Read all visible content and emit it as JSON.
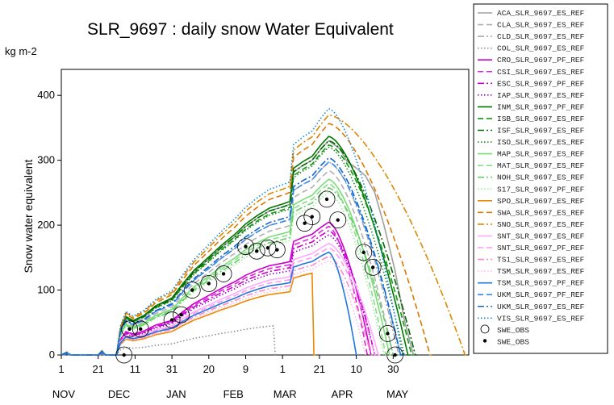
{
  "chart_data": {
    "type": "line",
    "title": "SLR_9697 : daily  snow Water Equivalent",
    "unit": "kg m-2",
    "ylabel": "Snow water equivalent",
    "ylim": [
      0,
      440
    ],
    "yticks": [
      0,
      100,
      200,
      300,
      400
    ],
    "xlim": [
      "1996-11-01",
      "1997-06-10"
    ],
    "xticks": [
      {
        "date": "1996-11-01",
        "label": "1"
      },
      {
        "date": "1996-11-21",
        "label": "21"
      },
      {
        "date": "1996-12-11",
        "label": "11"
      },
      {
        "date": "1996-12-31",
        "label": "31"
      },
      {
        "date": "1997-01-20",
        "label": "20"
      },
      {
        "date": "1997-02-09",
        "label": "9"
      },
      {
        "date": "1997-03-01",
        "label": "1"
      },
      {
        "date": "1997-03-21",
        "label": "21"
      },
      {
        "date": "1997-04-10",
        "label": "10"
      },
      {
        "date": "1997-04-30",
        "label": "30"
      }
    ],
    "months": [
      {
        "date": "1996-11-01",
        "label": "NOV"
      },
      {
        "date": "1996-12-01",
        "label": "DEC"
      },
      {
        "date": "1997-01-01",
        "label": "JAN"
      },
      {
        "date": "1997-02-01",
        "label": "FEB"
      },
      {
        "date": "1997-03-01",
        "label": "MAR"
      },
      {
        "date": "1997-04-01",
        "label": "APR"
      },
      {
        "date": "1997-05-01",
        "label": "MAY"
      }
    ],
    "grid": false,
    "legend_position": "right",
    "series": [
      {
        "name": "ACA_SLR_9697_ES_REF",
        "color": "#a0a0a0",
        "dash": "solid",
        "scale": 0.88,
        "melt": "1997-05-01",
        "points": [
          [
            "1996-11-01",
            0
          ],
          [
            "1996-11-04",
            4
          ],
          [
            "1996-11-06",
            0
          ],
          [
            "1996-11-21",
            0
          ],
          [
            "1996-11-23",
            6
          ],
          [
            "1996-11-25",
            0
          ],
          [
            "1996-12-01",
            0
          ],
          [
            "1996-12-03",
            38
          ],
          [
            "1996-12-06",
            58
          ],
          [
            "1996-12-10",
            52
          ],
          [
            "1996-12-16",
            60
          ],
          [
            "1996-12-22",
            74
          ],
          [
            "1996-12-31",
            86
          ],
          [
            "1997-01-06",
            108
          ],
          [
            "1997-01-12",
            128
          ],
          [
            "1997-01-20",
            148
          ],
          [
            "1997-01-27",
            166
          ],
          [
            "1997-02-03",
            182
          ],
          [
            "1997-02-09",
            198
          ],
          [
            "1997-02-16",
            212
          ],
          [
            "1997-02-22",
            222
          ],
          [
            "1997-03-01",
            228
          ],
          [
            "1997-03-05",
            232
          ],
          [
            "1997-03-07",
            282
          ],
          [
            "1997-03-12",
            292
          ],
          [
            "1997-03-17",
            300
          ],
          [
            "1997-03-22",
            318
          ],
          [
            "1997-03-26",
            330
          ],
          [
            "1997-04-01",
            318
          ],
          [
            "1997-04-05",
            298
          ],
          [
            "1997-04-10",
            288
          ],
          [
            "1997-04-15",
            276
          ],
          [
            "1997-04-20",
            250
          ],
          [
            "1997-04-25",
            200
          ],
          [
            "1997-05-01",
            130
          ],
          [
            "1997-05-06",
            55
          ],
          [
            "1997-05-11",
            0
          ]
        ]
      },
      {
        "name": "CLA_SLR_9697_ES_REF",
        "color": "#b0b0b0",
        "dash": "dash",
        "scale": 0.86,
        "melt": "1997-04-30",
        "points": []
      },
      {
        "name": "CLD_SLR_9697_ES_REF",
        "color": "#a8a8a8",
        "dash": "dashdot",
        "scale": 0.9,
        "melt": "1997-05-03",
        "points": []
      },
      {
        "name": "COL_SLR_9697_ES_REF",
        "color": "#909090",
        "dash": "dot",
        "scale": 0.2,
        "melt": "1997-02-25",
        "points": []
      },
      {
        "name": "CRO_SLR_9697_PF_REF",
        "color": "#cc00cc",
        "dash": "solid",
        "scale": 0.62,
        "melt": "1997-04-18",
        "points": []
      },
      {
        "name": "CSI_SLR_9697_ES_REF",
        "color": "#dd22dd",
        "dash": "dash",
        "scale": 0.6,
        "melt": "1997-04-16",
        "points": []
      },
      {
        "name": "ESC_SLR_9697_PF_REF",
        "color": "#cc00cc",
        "dash": "dashdot",
        "scale": 0.58,
        "melt": "1997-04-20",
        "points": []
      },
      {
        "name": "IAP_SLR_9697_ES_REF",
        "color": "#9900cc",
        "dash": "dot",
        "scale": 0.56,
        "melt": "1997-04-20",
        "points": []
      },
      {
        "name": "INM_SLR_9697_PF_REF",
        "color": "#007700",
        "dash": "solid",
        "scale": 1.02,
        "melt": "1997-05-08",
        "points": []
      },
      {
        "name": "ISB_SLR_9697_ES_REF",
        "color": "#119911",
        "dash": "dash",
        "scale": 0.98,
        "melt": "1997-05-10",
        "points": []
      },
      {
        "name": "ISF_SLR_9697_ES_REF",
        "color": "#006600",
        "dash": "dashdot",
        "scale": 1.0,
        "melt": "1997-05-12",
        "points": []
      },
      {
        "name": "ISO_SLR_9697_ES_REF",
        "color": "#228822",
        "dash": "dot",
        "scale": 0.97,
        "melt": "1997-05-06",
        "points": []
      },
      {
        "name": "MAP_SLR_9697_ES_REF",
        "color": "#77dd77",
        "dash": "solid",
        "scale": 0.82,
        "melt": "1997-04-28",
        "points": []
      },
      {
        "name": "MAT_SLR_9697_ES_REF",
        "color": "#88dd88",
        "dash": "dash",
        "scale": 0.8,
        "melt": "1997-04-26",
        "points": []
      },
      {
        "name": "NOH_SLR_9697_ES_REF",
        "color": "#66cc66",
        "dash": "dashdot",
        "scale": 0.78,
        "melt": "1997-04-30",
        "points": []
      },
      {
        "name": "S17_SLR_9697_PF_REF",
        "color": "#99ee99",
        "dash": "dot",
        "scale": 0.76,
        "melt": "1997-04-25",
        "points": []
      },
      {
        "name": "SPO_SLR_9697_ES_REF",
        "color": "#ee8800",
        "dash": "solid",
        "scale": 0.42,
        "melt": "1997-03-18",
        "points": []
      },
      {
        "name": "SWA_SLR_9697_ES_REF",
        "color": "#dd7700",
        "dash": "dash",
        "scale": 1.08,
        "melt": "1997-05-20",
        "points": []
      },
      {
        "name": "SNO_SLR_9697_ES_REF",
        "color": "#dd8800",
        "dash": "dashdot",
        "scale": 1.12,
        "melt": "1997-06-08",
        "points": []
      },
      {
        "name": "SNT_SLR_9697_ES_REF",
        "color": "#ffaaff",
        "dash": "solid",
        "scale": 0.52,
        "melt": "1997-04-22",
        "points": []
      },
      {
        "name": "SNT_SLR_9697_PF_REF",
        "color": "#ff99ee",
        "dash": "dash",
        "scale": 0.5,
        "melt": "1997-04-20",
        "points": []
      },
      {
        "name": "TS1_SLR_9697_ES_REF",
        "color": "#ff88cc",
        "dash": "dashdot",
        "scale": 0.46,
        "melt": "1997-04-18",
        "points": []
      },
      {
        "name": "TSM_SLR_9697_ES_REF",
        "color": "#ffbbdd",
        "dash": "dot",
        "scale": 0.44,
        "melt": "1997-04-15",
        "points": []
      },
      {
        "name": "TSM_SLR_9697_PF_REF",
        "color": "#2277dd",
        "dash": "solid",
        "scale": 0.48,
        "melt": "1997-04-10",
        "points": []
      },
      {
        "name": "UKM_SLR_9697_PF_REF",
        "color": "#3388ee",
        "dash": "dash",
        "scale": 0.9,
        "melt": "1997-05-04",
        "points": []
      },
      {
        "name": "UKM_SLR_9697_ES_REF",
        "color": "#1166cc",
        "dash": "dashdot",
        "scale": 0.92,
        "melt": "1997-05-04",
        "points": []
      },
      {
        "name": "VIS_SLR_9697_ES_REF",
        "color": "#1188dd",
        "dash": "dot",
        "scale": 1.15,
        "melt": "1997-05-05",
        "points": []
      }
    ],
    "obs_label_open": "SWE_OBS",
    "obs_label_dot": "SWE_OBS",
    "observations": [
      {
        "date": "1996-12-05",
        "value": 0
      },
      {
        "date": "1996-12-08",
        "value": 40
      },
      {
        "date": "1996-12-14",
        "value": 40
      },
      {
        "date": "1996-12-31",
        "value": 54
      },
      {
        "date": "1997-01-05",
        "value": 62
      },
      {
        "date": "1997-01-11",
        "value": 100
      },
      {
        "date": "1997-01-20",
        "value": 110
      },
      {
        "date": "1997-01-28",
        "value": 125
      },
      {
        "date": "1997-02-09",
        "value": 167
      },
      {
        "date": "1997-02-15",
        "value": 160
      },
      {
        "date": "1997-02-21",
        "value": 165
      },
      {
        "date": "1997-02-26",
        "value": 162
      },
      {
        "date": "1997-03-13",
        "value": 203
      },
      {
        "date": "1997-03-17",
        "value": 213
      },
      {
        "date": "1997-03-25",
        "value": 240
      },
      {
        "date": "1997-03-31",
        "value": 208
      },
      {
        "date": "1997-04-14",
        "value": 158
      },
      {
        "date": "1997-04-19",
        "value": 135
      },
      {
        "date": "1997-04-27",
        "value": 33
      },
      {
        "date": "1997-05-01",
        "value": 0
      }
    ]
  }
}
